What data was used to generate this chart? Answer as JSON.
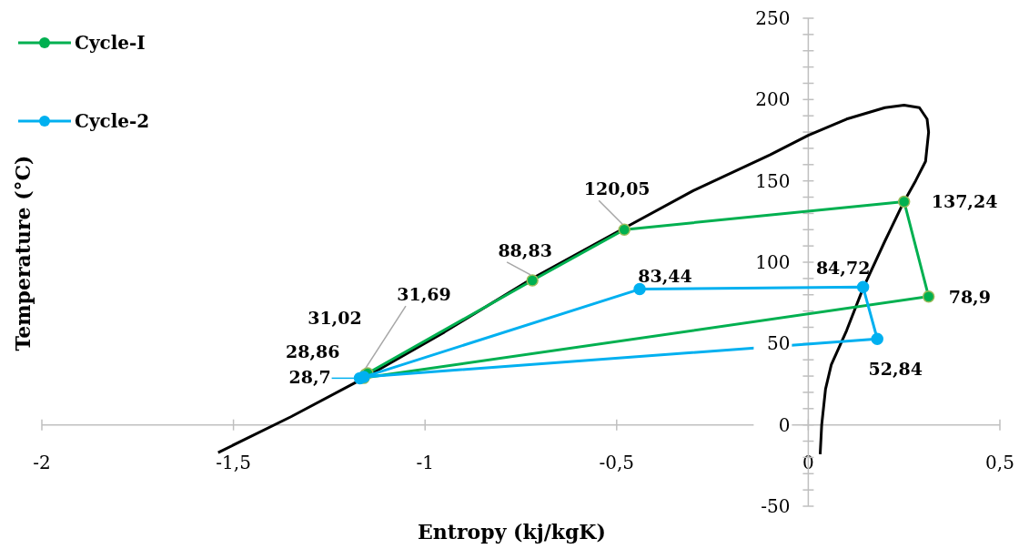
{
  "chart_data": {
    "type": "line",
    "xlabel": "Entropy (kj/kgK)",
    "ylabel": "Temperature (°C)",
    "xlim": [
      -2,
      0.5
    ],
    "xticks": [
      {
        "value": -2,
        "label": "-2"
      },
      {
        "value": -1.5,
        "label": "-1,5"
      },
      {
        "value": -1,
        "label": "-1"
      },
      {
        "value": -0.5,
        "label": "-0,5"
      },
      {
        "value": 0,
        "label": "0"
      },
      {
        "value": 0.5,
        "label": "0,5"
      }
    ],
    "ylim": [
      -50,
      250
    ],
    "yticks": [
      -50,
      {
        "value": -40,
        "label": null
      },
      {
        "value": -30,
        "label": null
      },
      {
        "value": -20,
        "label": null
      },
      {
        "value": -10,
        "label": null
      },
      0,
      {
        "value": 10,
        "label": null
      },
      {
        "value": 20,
        "label": null
      },
      {
        "value": 30,
        "label": null
      },
      {
        "value": 40,
        "label": null
      },
      50,
      {
        "value": 60,
        "label": null
      },
      {
        "value": 70,
        "label": null
      },
      {
        "value": 80,
        "label": null
      },
      {
        "value": 90,
        "label": null
      },
      100,
      {
        "value": 110,
        "label": null
      },
      {
        "value": 120,
        "label": null
      },
      {
        "value": 130,
        "label": null
      },
      {
        "value": 140,
        "label": null
      },
      150,
      {
        "value": 160,
        "label": null
      },
      {
        "value": 170,
        "label": null
      },
      {
        "value": 180,
        "label": null
      },
      {
        "value": 190,
        "label": null
      },
      200,
      {
        "value": 210,
        "label": null
      },
      {
        "value": 220,
        "label": null
      },
      {
        "value": 230,
        "label": null
      },
      {
        "value": 240,
        "label": null
      },
      250
    ],
    "grid": false,
    "legend": "top left",
    "marker": "circle",
    "line_style": "solid",
    "series": [
      {
        "color": "#000000",
        "marker": "none",
        "x": [
          -1.54,
          -1.35,
          -1.15,
          -0.95,
          -0.72,
          -0.48,
          -0.3,
          -0.1,
          0.0,
          0.1,
          0.2,
          0.25,
          0.29,
          0.31,
          0.314,
          0.306,
          0.28,
          0.249,
          0.2,
          0.143,
          0.1,
          0.06,
          0.045,
          0.035,
          0.031
        ],
        "values": [
          -17,
          5,
          30,
          57,
          90,
          121,
          144,
          166,
          178,
          188,
          195,
          196.5,
          195,
          188,
          180,
          162,
          150,
          137,
          113,
          84,
          58,
          37,
          22,
          0,
          -18
        ]
      },
      {
        "name": "Cycle-I",
        "color": "#00b050",
        "x": [
          -1.155,
          -1.15,
          -0.72,
          -0.48,
          0.25,
          0.314,
          -1.16
        ],
        "values": [
          31.02,
          31.69,
          88.83,
          120.05,
          137.24,
          78.9,
          28.86
        ],
        "value_labels": [
          "31,02",
          "31,69",
          "88,83",
          "120,05",
          "137,24",
          "78,9",
          "28,86"
        ]
      },
      {
        "name": "Cycle-2",
        "color": "#00b0f0",
        "x": [
          -1.17,
          -0.44,
          0.143,
          0.18,
          -1.16
        ],
        "values": [
          28.7,
          83.44,
          84.72,
          52.84,
          29.5
        ],
        "value_labels": [
          "28,7",
          "83,44",
          "84,72",
          "52,84",
          null
        ]
      }
    ]
  }
}
